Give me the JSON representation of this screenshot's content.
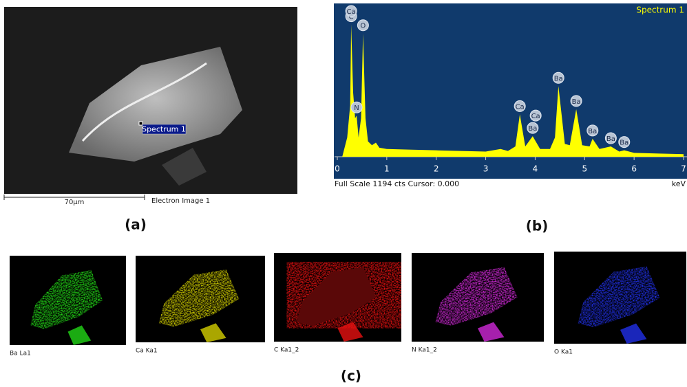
{
  "panel_a": {
    "caption": "(a)",
    "marker_label": "Spectrum 1",
    "scale_label": "70µm",
    "image_label": "Electron Image 1"
  },
  "chart_data": {
    "type": "area",
    "caption": "(b)",
    "footer": "Full Scale 1194 cts Cursor: 0.000",
    "xlabel": "keV",
    "xlim": [
      0,
      7
    ],
    "ylim": [
      0,
      1194
    ],
    "xticks": [
      0,
      1,
      2,
      3,
      4,
      5,
      6,
      7
    ],
    "x": [
      0.1,
      0.2,
      0.26,
      0.28,
      0.32,
      0.36,
      0.39,
      0.43,
      0.48,
      0.52,
      0.57,
      0.62,
      0.7,
      0.78,
      0.85,
      1.0,
      1.5,
      2.0,
      2.5,
      3.0,
      3.3,
      3.45,
      3.6,
      3.69,
      3.8,
      3.95,
      4.01,
      4.1,
      4.3,
      4.4,
      4.47,
      4.6,
      4.7,
      4.83,
      4.95,
      5.1,
      5.16,
      5.3,
      5.53,
      5.7,
      5.8,
      6.0,
      6.5,
      7.0
    ],
    "series": [
      {
        "name": "Spectrum 1",
        "color": "#ffff00",
        "values": [
          0,
          150,
          400,
          1030,
          500,
          300,
          320,
          150,
          300,
          960,
          300,
          120,
          90,
          110,
          70,
          60,
          55,
          50,
          45,
          40,
          60,
          45,
          80,
          330,
          80,
          160,
          120,
          60,
          60,
          150,
          550,
          100,
          90,
          370,
          90,
          80,
          140,
          60,
          80,
          40,
          50,
          30,
          25,
          20
        ]
      }
    ],
    "peaks": [
      {
        "label": "C",
        "x": 0.28
      },
      {
        "label": "Ca",
        "x": 0.28
      },
      {
        "label": "N",
        "x": 0.39
      },
      {
        "label": "O",
        "x": 0.52
      },
      {
        "label": "Ca",
        "x": 3.69
      },
      {
        "label": "Ba",
        "x": 3.95
      },
      {
        "label": "Ca",
        "x": 4.01
      },
      {
        "label": "Ba",
        "x": 4.47
      },
      {
        "label": "Ba",
        "x": 4.83
      },
      {
        "label": "Ba",
        "x": 5.16
      },
      {
        "label": "Ba",
        "x": 5.53
      },
      {
        "label": "Ba",
        "x": 5.8
      }
    ]
  },
  "panel_c": {
    "caption": "(c)",
    "maps": [
      {
        "label": "Ba La1",
        "color": "#22d616"
      },
      {
        "label": "Ca Ka1",
        "color": "#d4d000"
      },
      {
        "label": "C Ka1_2",
        "color": "#e81010"
      },
      {
        "label": "N Ka1_2",
        "color": "#d028d8"
      },
      {
        "label": "O Ka1",
        "color": "#2030e8"
      }
    ]
  }
}
